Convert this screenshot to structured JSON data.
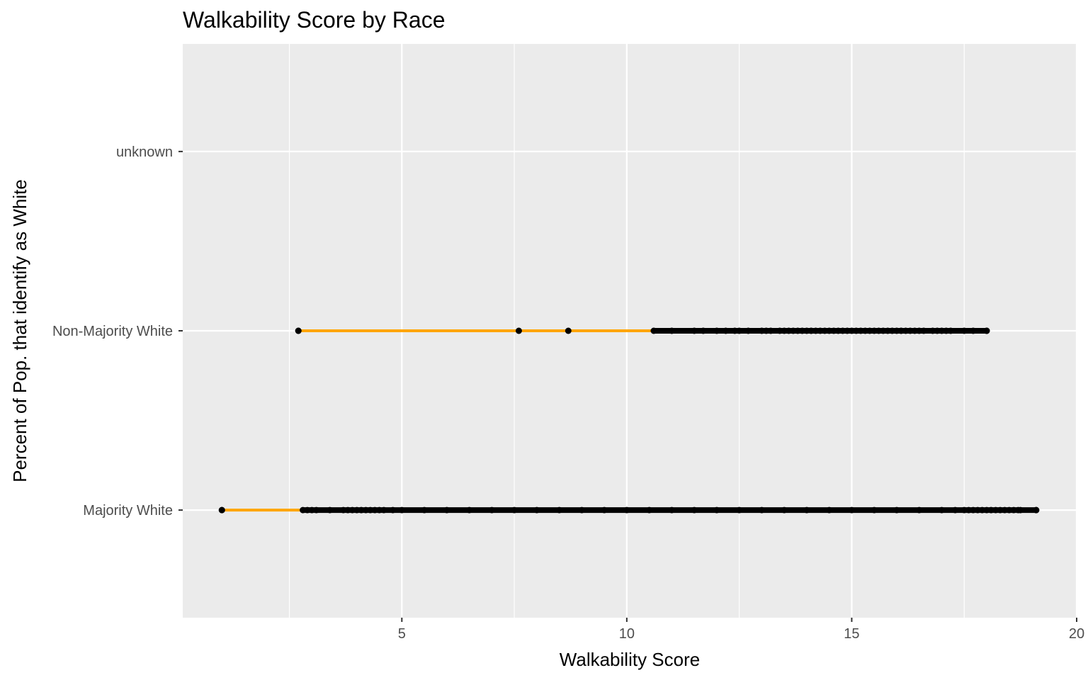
{
  "chart_data": {
    "type": "scatter",
    "title": "Walkability Score by Race",
    "xlabel": "Walkability Score",
    "ylabel": "Percent of Pop. that identify as White",
    "xlim": [
      0.13,
      20
    ],
    "x_ticks": [
      5,
      10,
      15,
      20
    ],
    "categories": [
      "Majority White",
      "Non-Majority White",
      "unknown"
    ],
    "grid": true,
    "legend": "none",
    "colors": {
      "panel": "#ebebeb",
      "grid": "#ffffff",
      "range_line": "#ffa500",
      "points": "#000000"
    },
    "ranges": [
      {
        "category": "Majority White",
        "min": 1.0,
        "max": 19.1
      },
      {
        "category": "Non-Majority White",
        "min": 2.7,
        "max": 18.0
      }
    ],
    "series": [
      {
        "category": "Majority White",
        "x": [
          1.0,
          2.8,
          2.9,
          3.0,
          3.1,
          3.4,
          3.7,
          3.8,
          3.9,
          4.0,
          4.1,
          4.2,
          4.3,
          4.4,
          4.5,
          4.6,
          4.8,
          5.0,
          5.5,
          6.0,
          6.5,
          7.0,
          7.5,
          8.0,
          8.5,
          9.0,
          9.5,
          10.0,
          10.5,
          11.0,
          11.5,
          12.0,
          12.5,
          13.0,
          13.5,
          14.0,
          14.5,
          15.0,
          15.5,
          16.0,
          16.5,
          17.0,
          17.3,
          17.5,
          17.6,
          17.7,
          17.8,
          17.9,
          18.0,
          18.1,
          18.2,
          18.3,
          18.4,
          18.5,
          18.6,
          18.7,
          18.75,
          19.1
        ]
      },
      {
        "category": "Non-Majority White",
        "x": [
          2.7,
          7.6,
          8.7,
          10.6,
          11.0,
          11.5,
          11.7,
          12.0,
          12.2,
          12.4,
          12.5,
          12.7,
          13.0,
          13.1,
          13.2,
          13.4,
          13.5,
          13.6,
          13.7,
          13.8,
          13.9,
          14.0,
          14.1,
          14.2,
          14.3,
          14.4,
          14.5,
          14.6,
          14.7,
          14.8,
          14.9,
          15.0,
          15.1,
          15.2,
          15.3,
          15.4,
          15.5,
          15.6,
          15.7,
          15.8,
          15.9,
          16.0,
          16.1,
          16.2,
          16.3,
          16.4,
          16.5,
          16.6,
          16.8,
          16.9,
          17.0,
          17.1,
          17.2,
          17.5,
          17.7,
          18.0
        ]
      }
    ]
  }
}
